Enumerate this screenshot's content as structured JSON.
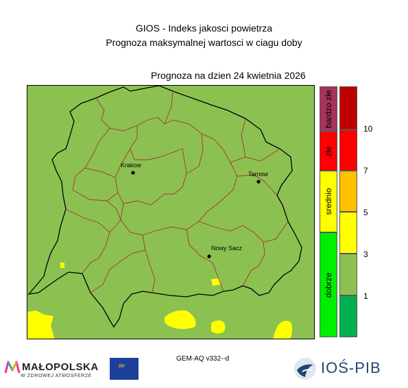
{
  "header": {
    "line1": "GIOS - Indeks jakosci powietrza",
    "line2": "Prognoza maksymalnej wartosci w ciagu doby",
    "date_line": "Prognoza na dzien  24 kwietnia 2026"
  },
  "map": {
    "cities": [
      {
        "name": "Krakow"
      },
      {
        "name": "Tarnow"
      },
      {
        "name": "Nowy Sacz"
      }
    ],
    "colors": {
      "background": "#8cc152",
      "forecast_fill": "#8cc152",
      "hotspot_fill": "#ffff00",
      "border_outer": "#000000",
      "border_inner": "#a0362a"
    }
  },
  "legend": {
    "categories": [
      {
        "label": "bardzo złe",
        "color": "#a8325a"
      },
      {
        "label": "złe",
        "color": "#ff0000"
      },
      {
        "label": "srednio",
        "color": "#ffff00"
      },
      {
        "label": "dobrze",
        "color": "#00ee00"
      }
    ],
    "scale": [
      {
        "color": "#c00000"
      },
      {
        "color": "#ff0000"
      },
      {
        "color": "#ffc000"
      },
      {
        "color": "#ffff00"
      },
      {
        "color": "#8cc152"
      },
      {
        "color": "#00b050"
      }
    ],
    "ticks": [
      "10",
      "7",
      "5",
      "3",
      "1"
    ]
  },
  "footer": {
    "model": "GEM-AQ v332--d",
    "malopolska_name": "MAŁOPOLSKA",
    "malopolska_sub": "W ZDROWEJ ATMOSFERZE",
    "eu_text": "life",
    "ios_name": "IOŚ-PIB"
  }
}
